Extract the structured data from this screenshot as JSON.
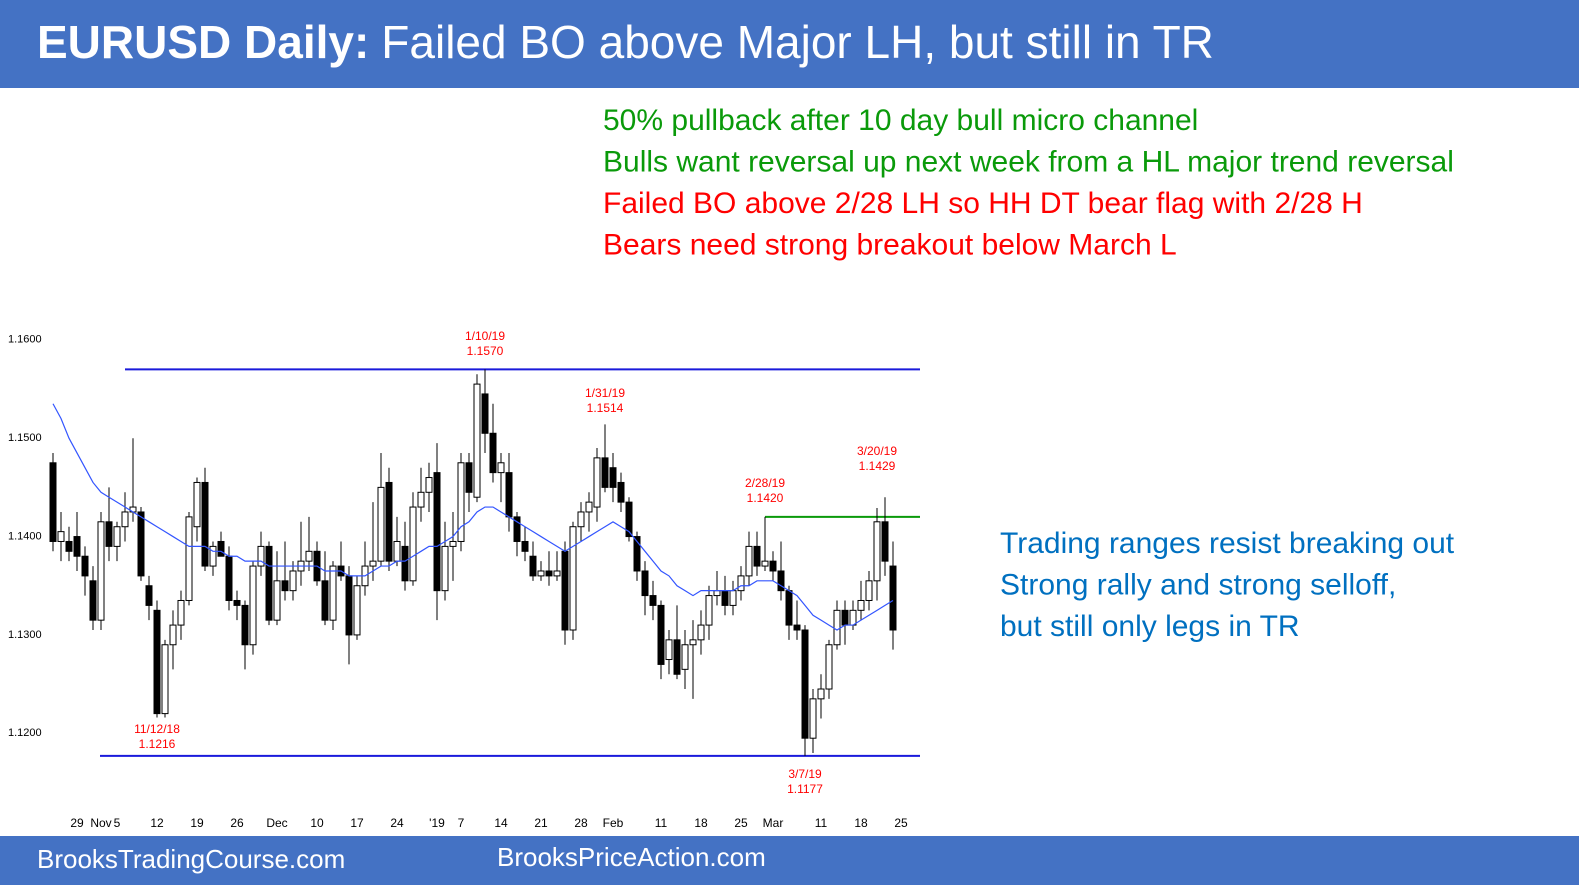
{
  "header": {
    "title_bold": "EURUSD Daily:",
    "title_rest": "Failed BO above Major LH, but still in TR"
  },
  "notes_top": [
    {
      "text": "50% pullback after 10 day bull micro channel",
      "color": "#0a9a0a"
    },
    {
      "text": "Bulls want reversal up next week from a HL major trend reversal",
      "color": "#0a9a0a"
    },
    {
      "text": "Failed BO above 2/28 LH so HH DT bear flag with 2/28 H",
      "color": "#ff0000"
    },
    {
      "text": "Bears need strong breakout below March L",
      "color": "#ff0000"
    }
  ],
  "notes_right": [
    {
      "text": "Trading ranges resist breaking out",
      "color": "#0070c0"
    },
    {
      "text": "Strong rally and strong selloff,",
      "color": "#0070c0"
    },
    {
      "text": "but still only legs in TR",
      "color": "#0070c0"
    }
  ],
  "footer": {
    "left": "BrooksTradingCourse.com",
    "right": "BrooksPriceAction.com"
  },
  "chart_data": {
    "type": "candlestick",
    "up_color": "#ffffff",
    "down_color": "#000000",
    "categories": [
      null,
      null,
      null,
      "29",
      null,
      null,
      "Nov",
      null,
      "5",
      null,
      null,
      null,
      null,
      "12",
      null,
      null,
      null,
      null,
      "19",
      null,
      null,
      null,
      null,
      "26",
      null,
      null,
      null,
      null,
      "Dec",
      null,
      null,
      null,
      null,
      "10",
      null,
      null,
      null,
      null,
      "17",
      null,
      null,
      null,
      null,
      "24",
      null,
      null,
      null,
      null,
      "'19",
      null,
      null,
      "7",
      null,
      null,
      null,
      null,
      "14",
      null,
      null,
      null,
      null,
      "21",
      null,
      null,
      null,
      null,
      "28",
      null,
      null,
      null,
      "Feb",
      null,
      null,
      null,
      null,
      null,
      "11",
      null,
      null,
      null,
      null,
      "18",
      null,
      null,
      null,
      null,
      "25",
      null,
      null,
      null,
      "Mar",
      null,
      null,
      null,
      null,
      null,
      "11",
      null,
      null,
      null,
      null,
      "18",
      null,
      null,
      null,
      null,
      "25"
    ],
    "open": [
      1.1475,
      1.1395,
      1.1395,
      1.14,
      1.138,
      1.1355,
      1.1315,
      1.1415,
      1.139,
      1.141,
      1.1425,
      1.1425,
      1.135,
      1.1325,
      1.122,
      1.129,
      1.131,
      1.1335,
      1.141,
      1.1455,
      1.137,
      1.1395,
      1.138,
      1.1335,
      1.133,
      1.129,
      1.137,
      1.139,
      1.1315,
      1.1355,
      1.1345,
      1.1365,
      1.1375,
      1.1385,
      1.1355,
      1.1315,
      1.137,
      1.136,
      1.13,
      1.135,
      1.137,
      1.1375,
      1.1455,
      1.1375,
      1.139,
      1.1355,
      1.143,
      1.1445,
      1.1465,
      1.1345,
      1.139,
      1.1395,
      1.1475,
      1.144,
      1.1545,
      1.1505,
      1.1465,
      1.1465,
      1.142,
      1.1395,
      1.138,
      1.136,
      1.1365,
      1.136,
      1.1385,
      1.1305,
      1.141,
      1.1425,
      1.143,
      1.148,
      1.147,
      1.1455,
      1.1435,
      1.14,
      1.1365,
      1.134,
      1.133,
      1.1275,
      1.1295,
      1.1265,
      1.129,
      1.1295,
      1.131,
      1.134,
      1.1345,
      1.133,
      1.1345,
      1.136,
      1.139,
      1.137,
      1.1375,
      1.1365,
      1.1345,
      1.131,
      1.1305,
      1.1195,
      1.1235,
      1.1245,
      1.129,
      1.1325,
      1.131,
      1.1325,
      1.1335,
      1.1355,
      1.1415,
      1.137,
      null
    ],
    "high": [
      1.1485,
      1.1425,
      1.141,
      1.1425,
      1.139,
      1.137,
      1.1425,
      1.145,
      1.1415,
      1.1445,
      1.15,
      1.143,
      1.136,
      1.1335,
      1.1295,
      1.1325,
      1.1345,
      1.1425,
      1.146,
      1.147,
      1.1395,
      1.1405,
      1.139,
      1.1345,
      1.1335,
      1.1375,
      1.1405,
      1.1395,
      1.1385,
      1.1395,
      1.1375,
      1.1415,
      1.142,
      1.1395,
      1.1385,
      1.1375,
      1.1395,
      1.137,
      1.136,
      1.1395,
      1.1435,
      1.1485,
      1.147,
      1.142,
      1.1415,
      1.1445,
      1.147,
      1.1475,
      1.1495,
      1.1415,
      1.1425,
      1.1485,
      1.1485,
      1.1565,
      1.157,
      1.1535,
      1.1485,
      1.1485,
      1.1425,
      1.141,
      1.1395,
      1.1375,
      1.1385,
      1.1385,
      1.1395,
      1.1415,
      1.1435,
      1.1445,
      1.149,
      1.1514,
      1.1485,
      1.1465,
      1.144,
      1.1405,
      1.1375,
      1.1355,
      1.1335,
      1.1305,
      1.133,
      1.1305,
      1.1315,
      1.1325,
      1.135,
      1.1365,
      1.136,
      1.1355,
      1.137,
      1.1405,
      1.1405,
      1.142,
      1.1385,
      1.1395,
      1.135,
      1.1335,
      1.131,
      1.1245,
      1.126,
      1.1295,
      1.1335,
      1.1335,
      1.1335,
      1.1355,
      1.1365,
      1.1429,
      1.144,
      1.1395,
      null
    ],
    "low": [
      1.1385,
      1.1375,
      1.1375,
      1.1365,
      1.134,
      1.1305,
      1.1305,
      1.1375,
      1.1375,
      1.1395,
      1.1415,
      1.1355,
      1.1315,
      1.1216,
      1.1216,
      1.1265,
      1.1295,
      1.133,
      1.1395,
      1.1365,
      1.136,
      1.138,
      1.1325,
      1.1315,
      1.1265,
      1.128,
      1.136,
      1.131,
      1.131,
      1.1335,
      1.1335,
      1.135,
      1.1365,
      1.135,
      1.131,
      1.1305,
      1.1355,
      1.127,
      1.1295,
      1.134,
      1.1355,
      1.137,
      1.1365,
      1.137,
      1.1345,
      1.135,
      1.1415,
      1.1425,
      1.1315,
      1.1335,
      1.1355,
      1.1385,
      1.1425,
      1.1435,
      1.1485,
      1.1455,
      1.1435,
      1.1405,
      1.138,
      1.1375,
      1.1355,
      1.1355,
      1.135,
      1.1355,
      1.129,
      1.1295,
      1.1395,
      1.1405,
      1.1415,
      1.1445,
      1.1435,
      1.1425,
      1.1395,
      1.1355,
      1.132,
      1.1315,
      1.1255,
      1.126,
      1.1255,
      1.1245,
      1.1235,
      1.128,
      1.1295,
      1.133,
      1.132,
      1.132,
      1.1335,
      1.135,
      1.136,
      1.1365,
      1.1355,
      1.1335,
      1.1295,
      1.1295,
      1.1177,
      1.118,
      1.1215,
      1.1235,
      1.1285,
      1.129,
      1.1305,
      1.1315,
      1.1325,
      1.1335,
      1.136,
      1.1285,
      null
    ],
    "close": [
      1.1395,
      1.1405,
      1.1385,
      1.138,
      1.136,
      1.1315,
      1.1415,
      1.139,
      1.141,
      1.1425,
      1.143,
      1.136,
      1.133,
      1.122,
      1.129,
      1.131,
      1.1335,
      1.142,
      1.1455,
      1.137,
      1.139,
      1.138,
      1.1335,
      1.133,
      1.129,
      1.137,
      1.139,
      1.1315,
      1.1355,
      1.1345,
      1.1365,
      1.1375,
      1.1385,
      1.1355,
      1.1315,
      1.137,
      1.136,
      1.13,
      1.135,
      1.137,
      1.1375,
      1.145,
      1.1375,
      1.1395,
      1.1355,
      1.143,
      1.1445,
      1.146,
      1.1345,
      1.139,
      1.1395,
      1.1475,
      1.1445,
      1.1555,
      1.1505,
      1.1465,
      1.1475,
      1.142,
      1.1395,
      1.1385,
      1.136,
      1.1365,
      1.136,
      1.1365,
      1.1305,
      1.141,
      1.1425,
      1.1435,
      1.148,
      1.145,
      1.145,
      1.1435,
      1.14,
      1.1365,
      1.134,
      1.133,
      1.127,
      1.1295,
      1.126,
      1.129,
      1.1295,
      1.131,
      1.134,
      1.1345,
      1.133,
      1.1345,
      1.136,
      1.139,
      1.137,
      1.1375,
      1.1365,
      1.1345,
      1.131,
      1.1305,
      1.1195,
      1.1235,
      1.1245,
      1.129,
      1.1325,
      1.131,
      1.1325,
      1.1335,
      1.1355,
      1.1415,
      1.1375,
      1.1305,
      null
    ],
    "moving_average": {
      "color": "#3355ff",
      "values": [
        1.1535,
        1.152,
        1.15,
        1.1485,
        1.147,
        1.1455,
        1.1445,
        1.144,
        1.1435,
        1.143,
        1.1425,
        1.142,
        1.1415,
        1.141,
        1.1405,
        1.14,
        1.1395,
        1.139,
        1.139,
        1.139,
        1.1385,
        1.1385,
        1.138,
        1.138,
        1.1375,
        1.1375,
        1.1375,
        1.137,
        1.137,
        1.137,
        1.137,
        1.137,
        1.137,
        1.137,
        1.1365,
        1.1365,
        1.1365,
        1.136,
        1.136,
        1.136,
        1.1365,
        1.137,
        1.137,
        1.1375,
        1.1375,
        1.138,
        1.1385,
        1.139,
        1.139,
        1.1395,
        1.14,
        1.141,
        1.1415,
        1.1425,
        1.143,
        1.143,
        1.1425,
        1.142,
        1.1415,
        1.141,
        1.1405,
        1.14,
        1.1395,
        1.139,
        1.1385,
        1.139,
        1.1395,
        1.14,
        1.1405,
        1.141,
        1.1415,
        1.141,
        1.1405,
        1.1395,
        1.1385,
        1.1375,
        1.1365,
        1.136,
        1.135,
        1.1345,
        1.134,
        1.1345,
        1.1345,
        1.1345,
        1.1345,
        1.1345,
        1.135,
        1.135,
        1.1355,
        1.1355,
        1.1355,
        1.135,
        1.1345,
        1.134,
        1.133,
        1.132,
        1.1315,
        1.131,
        1.1305,
        1.131,
        1.131,
        1.1315,
        1.132,
        1.1325,
        1.133,
        1.1335,
        null
      ]
    },
    "levels": [
      {
        "value": 1.157,
        "color": "#1a1adb"
      },
      {
        "value": 1.1177,
        "color": "#1a1adb"
      },
      {
        "value": 1.142,
        "color": "#0a9a0a"
      }
    ],
    "annotations": [
      {
        "date": "1/10/19",
        "price": "1.1570"
      },
      {
        "date": "1/31/19",
        "price": "1.1514"
      },
      {
        "date": "2/28/19",
        "price": "1.1420"
      },
      {
        "date": "3/20/19",
        "price": "1.1429"
      },
      {
        "date": "11/12/18",
        "price": "1.1216"
      },
      {
        "date": "3/7/19",
        "price": "1.1177"
      }
    ],
    "annotation_color": "#ff0000",
    "ylim": [
      1.1122,
      1.161
    ],
    "yticks": [
      {
        "value": 1.16,
        "label": "1.1600"
      },
      {
        "value": 1.15,
        "label": "1.1500"
      },
      {
        "value": 1.14,
        "label": "1.1400"
      },
      {
        "value": 1.13,
        "label": "1.1300"
      },
      {
        "value": 1.12,
        "label": "1.1200"
      }
    ]
  }
}
